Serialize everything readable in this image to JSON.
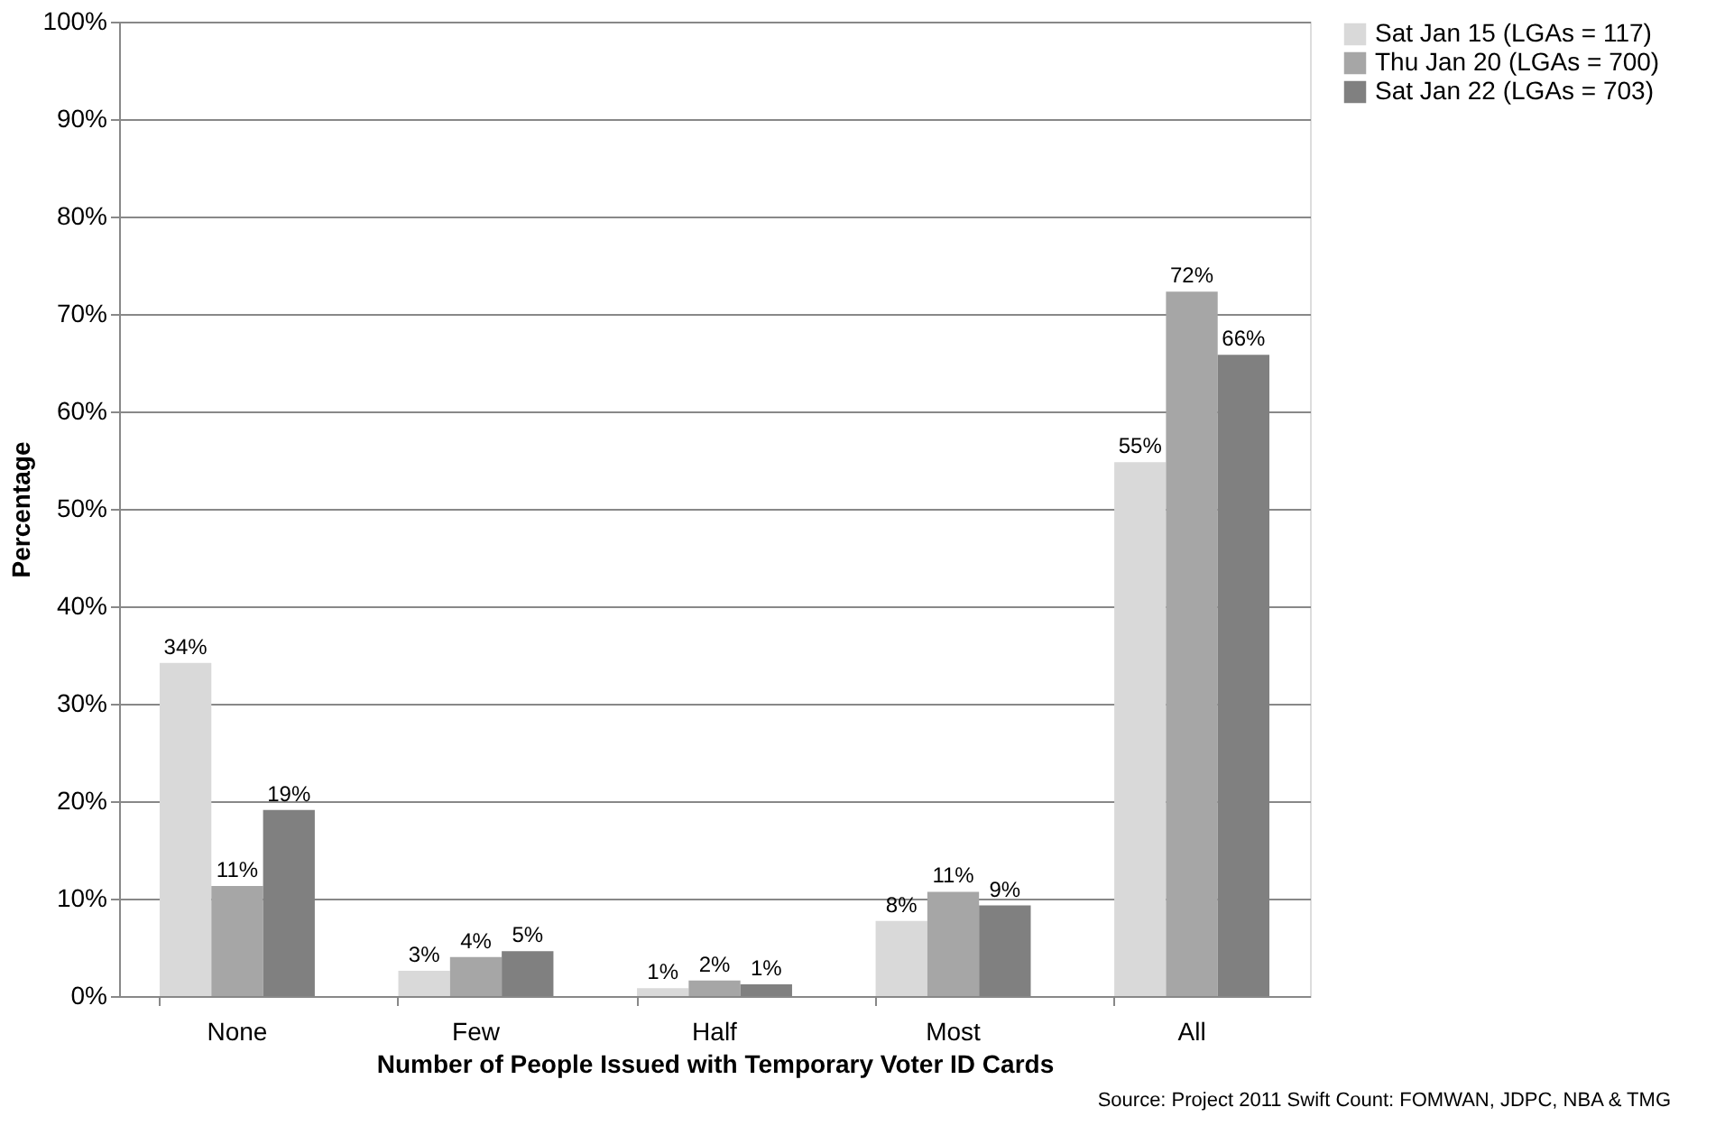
{
  "chart_data": {
    "type": "bar",
    "categories": [
      "None",
      "Few",
      "Half",
      "Most",
      "All"
    ],
    "xlabel": "Number of People Issued with Temporary Voter ID Cards",
    "ylabel": "Percentage",
    "ylim": [
      0,
      100
    ],
    "yticks": [
      {
        "value": 0,
        "label": "0%"
      },
      {
        "value": 10,
        "label": "10%"
      },
      {
        "value": 20,
        "label": "20%"
      },
      {
        "value": 30,
        "label": "30%"
      },
      {
        "value": 40,
        "label": "40%"
      },
      {
        "value": 50,
        "label": "50%"
      },
      {
        "value": 60,
        "label": "60%"
      },
      {
        "value": 70,
        "label": "70%"
      },
      {
        "value": 80,
        "label": "80%"
      },
      {
        "value": 90,
        "label": "90%"
      },
      {
        "value": 100,
        "label": "100%"
      }
    ],
    "grid": "y",
    "legend": "right",
    "series": [
      {
        "name": "Sat Jan 15 (LGAs = 117)",
        "color": "#d9d9d9",
        "values": [
          34.2,
          2.6,
          0.8,
          7.7,
          54.8
        ],
        "value_labels": [
          "34%",
          "3%",
          "1%",
          "8%",
          "55%"
        ]
      },
      {
        "name": "Thu Jan 20 (LGAs = 700)",
        "color": "#a6a6a6",
        "values": [
          11.3,
          4.0,
          1.6,
          10.7,
          72.3
        ],
        "value_labels": [
          "11%",
          "4%",
          "2%",
          "11%",
          "72%"
        ]
      },
      {
        "name": "Sat Jan 22 (LGAs = 703)",
        "color": "#808080",
        "values": [
          19.1,
          4.6,
          1.2,
          9.3,
          65.8
        ],
        "value_labels": [
          "19%",
          "5%",
          "1%",
          "9%",
          "66%"
        ]
      }
    ],
    "annotations": [
      "Source: Project 2011 Swift Count: FOMWAN, JDPC, NBA & TMG"
    ]
  }
}
